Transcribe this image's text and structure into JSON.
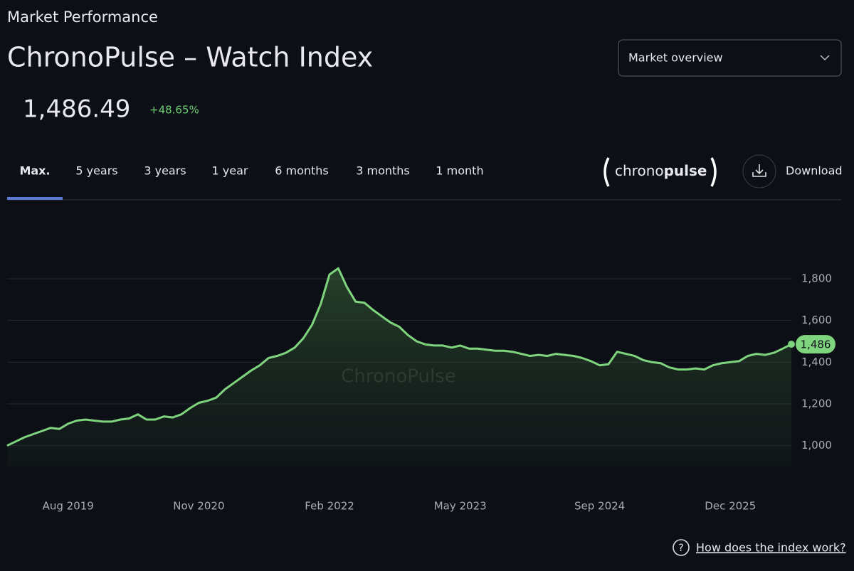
{
  "header": {
    "section": "Market Performance",
    "title": "ChronoPulse – Watch Index",
    "price": "1,486.49",
    "change": "+48.65%",
    "dropdown": "Market overview",
    "tabs": [
      "Max.",
      "5 years",
      "3 years",
      "1 year",
      "6 months",
      "3 months",
      "1 month"
    ],
    "logo": [
      "chrono",
      "pulse"
    ],
    "download": "Download"
  },
  "footer": {
    "help": "How does the index work?"
  },
  "chart_data": {
    "type": "line",
    "watermark": "ChronoPulse",
    "color": "#7fd47e",
    "grid": true,
    "xlim": [
      "2019-01",
      "2026-07"
    ],
    "xticks": [
      {
        "value": "2019-08",
        "label": "Aug 2019"
      },
      {
        "value": "2020-11",
        "label": "Nov 2020"
      },
      {
        "value": "2022-02",
        "label": "Feb 2022"
      },
      {
        "value": "2023-05",
        "label": "May 2023"
      },
      {
        "value": "2024-09",
        "label": "Sep 2024"
      },
      {
        "value": "2025-12",
        "label": "Dec 2025"
      }
    ],
    "ylim": [
      900,
      2100
    ],
    "yticks": [
      {
        "value": 1000,
        "label": "1,000"
      },
      {
        "value": 1200,
        "label": "1,200"
      },
      {
        "value": 1400,
        "label": "1,400"
      },
      {
        "value": 1600,
        "label": "1,600"
      },
      {
        "value": 1800,
        "label": "1,800"
      }
    ],
    "x": [
      "2019-01",
      "2019-02",
      "2019-03",
      "2019-04",
      "2019-05",
      "2019-06",
      "2019-07",
      "2019-08",
      "2019-09",
      "2019-10",
      "2019-11",
      "2019-12",
      "2020-01",
      "2020-02",
      "2020-03",
      "2020-04",
      "2020-05",
      "2020-06",
      "2020-07",
      "2020-08",
      "2020-09",
      "2020-10",
      "2020-11",
      "2020-12",
      "2021-01",
      "2021-02",
      "2021-03",
      "2021-04",
      "2021-05",
      "2021-06",
      "2021-07",
      "2021-08",
      "2021-09",
      "2021-10",
      "2021-11",
      "2021-12",
      "2022-01",
      "2022-02",
      "2022-03",
      "2022-04",
      "2022-05",
      "2022-06",
      "2022-07",
      "2022-08",
      "2022-09",
      "2022-10",
      "2022-11",
      "2022-12",
      "2023-01",
      "2023-02",
      "2023-03",
      "2023-04",
      "2023-05",
      "2023-06",
      "2023-07",
      "2023-08",
      "2023-09",
      "2023-10",
      "2023-11",
      "2023-12",
      "2024-01",
      "2024-02",
      "2024-03",
      "2024-04",
      "2024-05",
      "2024-06",
      "2024-07",
      "2024-08",
      "2024-09",
      "2024-10",
      "2024-11",
      "2024-12",
      "2025-01",
      "2025-02",
      "2025-03",
      "2025-04",
      "2025-05",
      "2025-06",
      "2025-07",
      "2025-08",
      "2025-09",
      "2025-10",
      "2025-11",
      "2025-12",
      "2026-01",
      "2026-02",
      "2026-03",
      "2026-04",
      "2026-05",
      "2026-06",
      "2026-07"
    ],
    "values": [
      1000,
      1020,
      1040,
      1055,
      1070,
      1085,
      1080,
      1105,
      1120,
      1125,
      1120,
      1115,
      1115,
      1125,
      1130,
      1150,
      1125,
      1125,
      1140,
      1135,
      1150,
      1180,
      1205,
      1215,
      1230,
      1270,
      1300,
      1330,
      1360,
      1385,
      1420,
      1430,
      1445,
      1470,
      1515,
      1580,
      1680,
      1820,
      1850,
      1760,
      1690,
      1685,
      1650,
      1620,
      1590,
      1570,
      1530,
      1500,
      1485,
      1480,
      1480,
      1470,
      1480,
      1465,
      1465,
      1460,
      1455,
      1455,
      1450,
      1440,
      1430,
      1435,
      1430,
      1440,
      1435,
      1430,
      1420,
      1405,
      1385,
      1390,
      1450,
      1440,
      1430,
      1410,
      1400,
      1395,
      1375,
      1365,
      1365,
      1370,
      1365,
      1385,
      1395,
      1400,
      1405,
      1430,
      1440,
      1435,
      1445,
      1465,
      1486
    ],
    "value_labels": [
      null,
      null,
      null,
      null,
      null,
      null,
      null,
      null,
      null,
      null,
      null,
      null,
      null,
      null,
      null,
      null,
      null,
      null,
      null,
      null,
      null,
      null,
      null,
      null,
      null,
      null,
      null,
      null,
      null,
      null,
      null,
      null,
      null,
      null,
      null,
      null,
      null,
      null,
      null,
      null,
      null,
      null,
      null,
      null,
      null,
      null,
      null,
      null,
      null,
      null,
      null,
      null,
      null,
      null,
      null,
      null,
      null,
      null,
      null,
      null,
      null,
      null,
      null,
      null,
      null,
      null,
      null,
      null,
      null,
      null,
      null,
      null,
      null,
      null,
      null,
      null,
      null,
      null,
      null,
      null,
      null,
      null,
      null,
      null,
      null,
      null,
      null,
      null,
      null,
      null,
      "1,486"
    ]
  }
}
